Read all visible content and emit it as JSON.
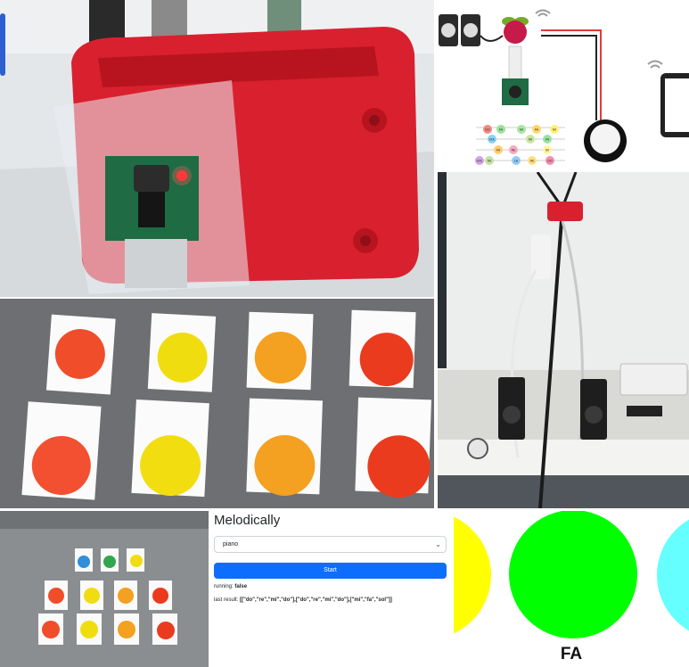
{
  "diagram": {
    "chips": [
      {
        "text": "DO",
        "color": "#f28b82"
      },
      {
        "text": "FA",
        "color": "#9be39b"
      },
      {
        "text": "MI",
        "color": "#a8e6a1"
      },
      {
        "text": "FA",
        "color": "#ffd76b"
      },
      {
        "text": "MI",
        "color": "#fff176"
      },
      {
        "text": "SOL",
        "color": "#8ad4f5"
      },
      {
        "text": "MI",
        "color": "#c8e6a0"
      },
      {
        "text": "FA",
        "color": "#9ae3a0"
      },
      {
        "text": "FA",
        "color": "#ffcd6b"
      },
      {
        "text": "RE",
        "color": "#f9a8c0"
      },
      {
        "text": "MI",
        "color": "#fff59d"
      },
      {
        "text": "SOL",
        "color": "#d1a4e6"
      },
      {
        "text": "LA",
        "color": "#90caf9"
      },
      {
        "text": "RE",
        "color": "#ffe082"
      },
      {
        "text": "DO",
        "color": "#f48fb1"
      },
      {
        "text": "MI",
        "color": "#c5e1a5"
      }
    ]
  },
  "app": {
    "title": "Melodically",
    "instrument_select": "piano",
    "start_button": "Start",
    "running_label": "running:",
    "running_value": "false",
    "last_result_label": "last result:",
    "last_result_value": "[[\"do\",\"re\",\"mi\",\"do\"],[\"do\",\"re\",\"mi\",\"do\"],[\"mi\",\"fa\",\"sol\"]]"
  },
  "carousel": {
    "current_note": "FA",
    "colors": {
      "prev": "#ffff00",
      "current": "#00ff00",
      "next": "#66ffff"
    }
  },
  "colors": {
    "accent": "#0d6efd",
    "case_red": "#d9202f"
  }
}
